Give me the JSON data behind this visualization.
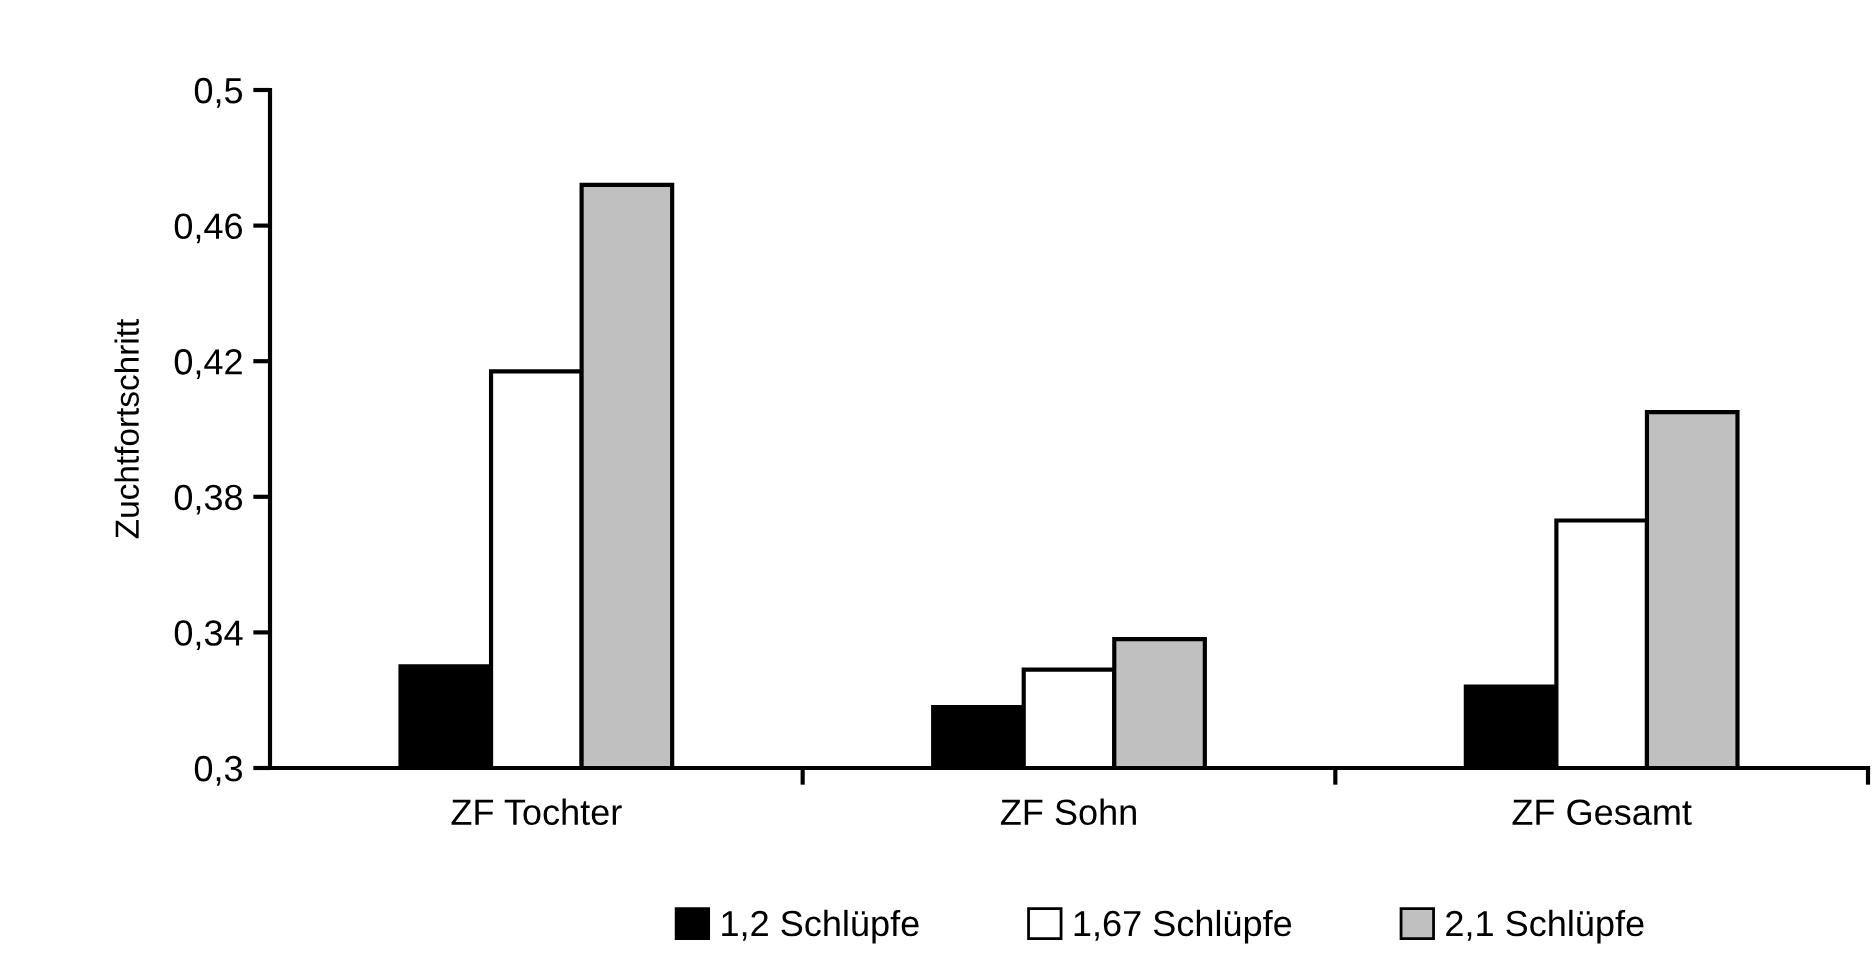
{
  "chart_data": {
    "type": "bar",
    "ylabel": "Zuchtfortschritt",
    "categories": [
      "ZF Tochter",
      "ZF Sohn",
      "ZF Gesamt"
    ],
    "series": [
      {
        "name": "1,2 Schlüpfe",
        "color": "#000000",
        "values": [
          0.33,
          0.318,
          0.324
        ]
      },
      {
        "name": "1,67 Schlüpfe",
        "color": "#ffffff",
        "values": [
          0.417,
          0.329,
          0.373
        ]
      },
      {
        "name": "2,1 Schlüpfe",
        "color": "#c0c0c0",
        "values": [
          0.472,
          0.338,
          0.405
        ]
      }
    ],
    "ylim": [
      0.3,
      0.5
    ],
    "yticks": [
      {
        "value": 0.3,
        "label": "0,3"
      },
      {
        "value": 0.34,
        "label": "0,34"
      },
      {
        "value": 0.38,
        "label": "0,38"
      },
      {
        "value": 0.42,
        "label": "0,42"
      },
      {
        "value": 0.46,
        "label": "0,46"
      },
      {
        "value": 0.5,
        "label": "0,5"
      }
    ],
    "grid": false,
    "legend": "bottom"
  }
}
